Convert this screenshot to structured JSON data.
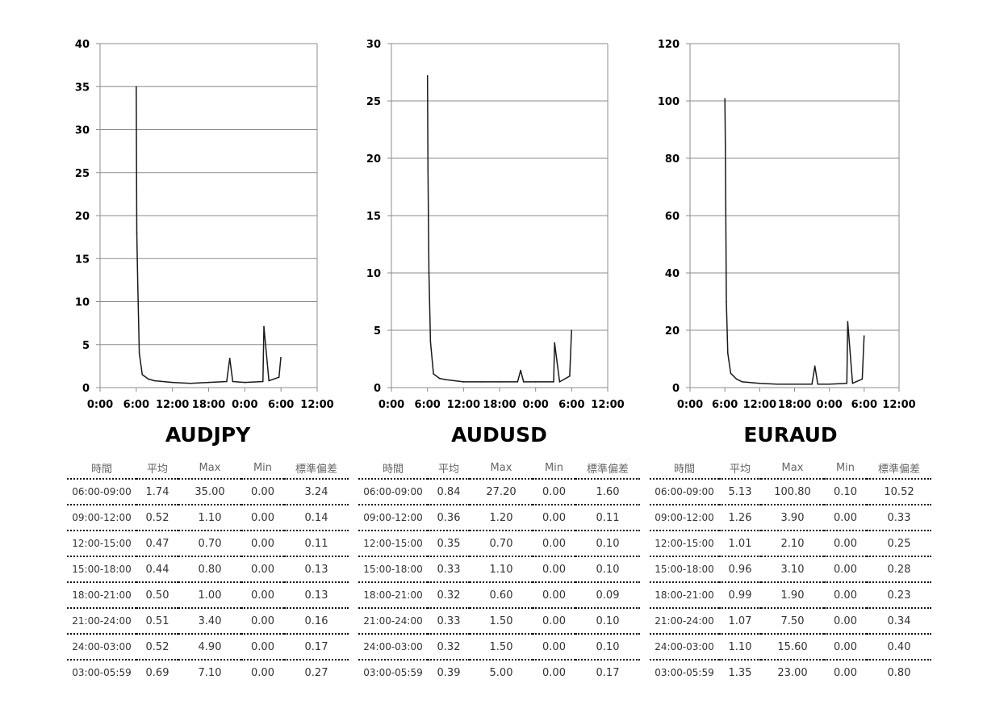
{
  "chart_data": [
    {
      "type": "line",
      "title": "AUDJPY",
      "ylim": [
        0,
        40
      ],
      "yticks": [
        0,
        5,
        10,
        15,
        20,
        25,
        30,
        35,
        40
      ],
      "x_tick_labels": [
        "0:00",
        "6:00",
        "12:00",
        "18:00",
        "0:00",
        "6:00",
        "12:00"
      ],
      "grid": true,
      "series": [
        {
          "x": [
            "6:00",
            "6:05",
            "6:15",
            "6:30",
            "7:00",
            "8:00",
            "9:00",
            "12:00",
            "15:00",
            "18:00",
            "21:00",
            "21:30",
            "22:00",
            "24:00",
            "03:00",
            "03:10",
            "04:00",
            "05:40",
            "05:59"
          ],
          "values": [
            35.0,
            18.0,
            12.0,
            4.0,
            1.5,
            1.0,
            0.8,
            0.6,
            0.5,
            0.6,
            0.7,
            3.4,
            0.7,
            0.6,
            0.7,
            7.1,
            0.8,
            1.2,
            3.5
          ]
        }
      ]
    },
    {
      "type": "line",
      "title": "AUDUSD",
      "ylim": [
        0,
        30
      ],
      "yticks": [
        0,
        5,
        10,
        15,
        20,
        25,
        30
      ],
      "x_tick_labels": [
        "0:00",
        "6:00",
        "12:00",
        "18:00",
        "0:00",
        "6:00",
        "12:00"
      ],
      "grid": true,
      "series": [
        {
          "x": [
            "6:00",
            "6:05",
            "6:15",
            "6:30",
            "7:00",
            "8:00",
            "9:00",
            "12:00",
            "15:00",
            "18:00",
            "21:00",
            "21:30",
            "22:00",
            "24:00",
            "03:00",
            "03:10",
            "04:00",
            "05:40",
            "05:59"
          ],
          "values": [
            27.2,
            19.0,
            10.0,
            4.0,
            1.2,
            0.8,
            0.7,
            0.5,
            0.5,
            0.5,
            0.5,
            1.5,
            0.5,
            0.5,
            0.5,
            3.9,
            0.5,
            1.0,
            5.0
          ]
        }
      ]
    },
    {
      "type": "line",
      "title": "EURAUD",
      "ylim": [
        0,
        120
      ],
      "yticks": [
        0,
        20,
        40,
        60,
        80,
        100,
        120
      ],
      "x_tick_labels": [
        "0:00",
        "6:00",
        "12:00",
        "18:00",
        "0:00",
        "6:00",
        "12:00"
      ],
      "grid": true,
      "series": [
        {
          "x": [
            "6:00",
            "6:05",
            "6:15",
            "6:30",
            "7:00",
            "8:00",
            "9:00",
            "12:00",
            "15:00",
            "18:00",
            "21:00",
            "21:30",
            "22:00",
            "24:00",
            "03:00",
            "03:10",
            "04:00",
            "05:40",
            "05:59"
          ],
          "values": [
            100.8,
            84.0,
            30.0,
            12.0,
            5.0,
            3.0,
            2.0,
            1.5,
            1.2,
            1.2,
            1.2,
            7.5,
            1.2,
            1.2,
            1.5,
            23.0,
            1.5,
            3.0,
            18.0
          ]
        }
      ]
    }
  ],
  "stats_tables": [
    {
      "pair": "AUDJPY",
      "headers": [
        "時間",
        "平均",
        "Max",
        "Min",
        "標準偏差"
      ],
      "rows": [
        [
          "06:00-09:00",
          "1.74",
          "35.00",
          "0.00",
          "3.24"
        ],
        [
          "09:00-12:00",
          "0.52",
          "1.10",
          "0.00",
          "0.14"
        ],
        [
          "12:00-15:00",
          "0.47",
          "0.70",
          "0.00",
          "0.11"
        ],
        [
          "15:00-18:00",
          "0.44",
          "0.80",
          "0.00",
          "0.13"
        ],
        [
          "18:00-21:00",
          "0.50",
          "1.00",
          "0.00",
          "0.13"
        ],
        [
          "21:00-24:00",
          "0.51",
          "3.40",
          "0.00",
          "0.16"
        ],
        [
          "24:00-03:00",
          "0.52",
          "4.90",
          "0.00",
          "0.17"
        ],
        [
          "03:00-05:59",
          "0.69",
          "7.10",
          "0.00",
          "0.27"
        ]
      ]
    },
    {
      "pair": "AUDUSD",
      "headers": [
        "時間",
        "平均",
        "Max",
        "Min",
        "標準偏差"
      ],
      "rows": [
        [
          "06:00-09:00",
          "0.84",
          "27.20",
          "0.00",
          "1.60"
        ],
        [
          "09:00-12:00",
          "0.36",
          "1.20",
          "0.00",
          "0.11"
        ],
        [
          "12:00-15:00",
          "0.35",
          "0.70",
          "0.00",
          "0.10"
        ],
        [
          "15:00-18:00",
          "0.33",
          "1.10",
          "0.00",
          "0.10"
        ],
        [
          "18:00-21:00",
          "0.32",
          "0.60",
          "0.00",
          "0.09"
        ],
        [
          "21:00-24:00",
          "0.33",
          "1.50",
          "0.00",
          "0.10"
        ],
        [
          "24:00-03:00",
          "0.32",
          "1.50",
          "0.00",
          "0.10"
        ],
        [
          "03:00-05:59",
          "0.39",
          "5.00",
          "0.00",
          "0.17"
        ]
      ]
    },
    {
      "pair": "EURAUD",
      "headers": [
        "時間",
        "平均",
        "Max",
        "Min",
        "標準偏差"
      ],
      "rows": [
        [
          "06:00-09:00",
          "5.13",
          "100.80",
          "0.10",
          "10.52"
        ],
        [
          "09:00-12:00",
          "1.26",
          "3.90",
          "0.00",
          "0.33"
        ],
        [
          "12:00-15:00",
          "1.01",
          "2.10",
          "0.00",
          "0.25"
        ],
        [
          "15:00-18:00",
          "0.96",
          "3.10",
          "0.00",
          "0.28"
        ],
        [
          "18:00-21:00",
          "0.99",
          "1.90",
          "0.00",
          "0.23"
        ],
        [
          "21:00-24:00",
          "1.07",
          "7.50",
          "0.00",
          "0.34"
        ],
        [
          "24:00-03:00",
          "1.10",
          "15.60",
          "0.00",
          "0.40"
        ],
        [
          "03:00-05:59",
          "1.35",
          "23.00",
          "0.00",
          "0.80"
        ]
      ]
    }
  ]
}
